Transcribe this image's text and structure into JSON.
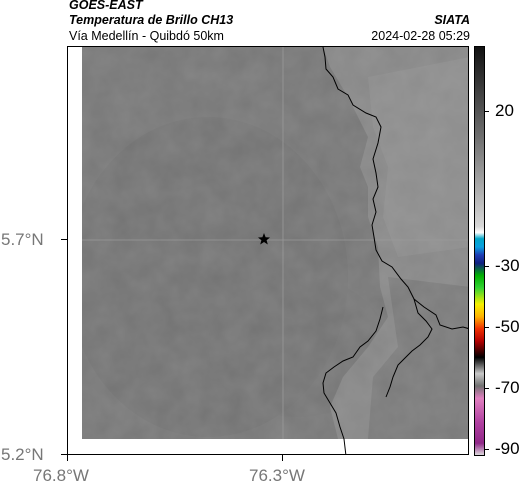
{
  "header": {
    "satellite": "GOES-EAST",
    "product": "Temperatura de Brillo CH13",
    "region": "Vía Medellín - Quibdó 50km",
    "org": "SIATA",
    "datetime": "2024-02-28 05:29"
  },
  "axes": {
    "lat_labels": [
      "5.7°N",
      "5.2°N"
    ],
    "lon_labels": [
      "76.8°W",
      "76.3°W"
    ]
  },
  "colorbar": {
    "labels": [
      "20",
      "-30",
      "-50",
      "-70",
      "-90"
    ]
  },
  "map": {
    "marker_icon": "star-icon",
    "marker_color": "#000000",
    "land_color": "#7a7a7a",
    "coast_color": "#000000"
  }
}
